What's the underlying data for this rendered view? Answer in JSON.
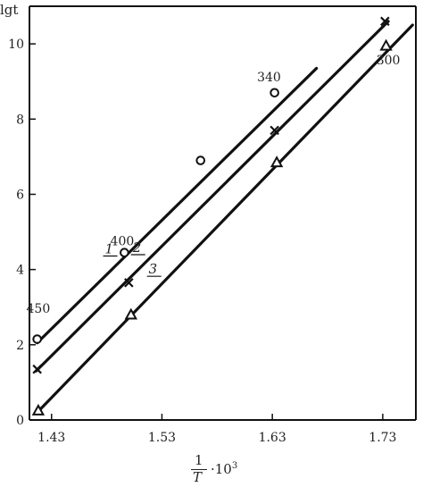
{
  "chart_data": {
    "type": "line",
    "ylabel": "lgt",
    "xlabel": {
      "numerator": "1",
      "denominator": "T",
      "multiplier": "·10",
      "exponent": "3"
    },
    "xlim": [
      1.41,
      1.76
    ],
    "ylim": [
      0,
      11
    ],
    "x_ticks": [
      1.43,
      1.53,
      1.63,
      1.73
    ],
    "x_tick_labels": [
      "1.43",
      "1.53",
      "1.63",
      "1.73"
    ],
    "y_ticks": [
      0,
      2,
      4,
      6,
      8,
      10
    ],
    "y_tick_labels": [
      "0",
      "2",
      "4",
      "6",
      "8",
      "10"
    ],
    "grid": false,
    "series": [
      {
        "name": "1",
        "marker": "circle",
        "line": {
          "x": [
            1.417,
            1.67
          ],
          "y": [
            2.05,
            9.35
          ]
        },
        "points": {
          "x": [
            1.417,
            1.496,
            1.565,
            1.632
          ],
          "y": [
            2.15,
            4.45,
            6.9,
            8.7
          ]
        }
      },
      {
        "name": "2",
        "marker": "cross",
        "line": {
          "x": [
            1.416,
            1.735
          ],
          "y": [
            1.3,
            10.6
          ]
        },
        "points": {
          "x": [
            1.417,
            1.5,
            1.632,
            1.732
          ],
          "y": [
            1.35,
            3.65,
            7.7,
            10.6
          ]
        }
      },
      {
        "name": "3",
        "marker": "triangle",
        "line": {
          "x": [
            1.417,
            1.757
          ],
          "y": [
            0.2,
            10.5
          ]
        },
        "points": {
          "x": [
            1.418,
            1.502,
            1.634,
            1.733
          ],
          "y": [
            0.25,
            2.8,
            6.85,
            9.95
          ]
        }
      }
    ],
    "annotations": [
      {
        "text": "450",
        "x": 1.418,
        "y": 2.85
      },
      {
        "text": "400",
        "x": 1.494,
        "y": 4.65
      },
      {
        "text": "340",
        "x": 1.627,
        "y": 9.0
      },
      {
        "text": "300",
        "x": 1.735,
        "y": 9.45
      }
    ]
  }
}
